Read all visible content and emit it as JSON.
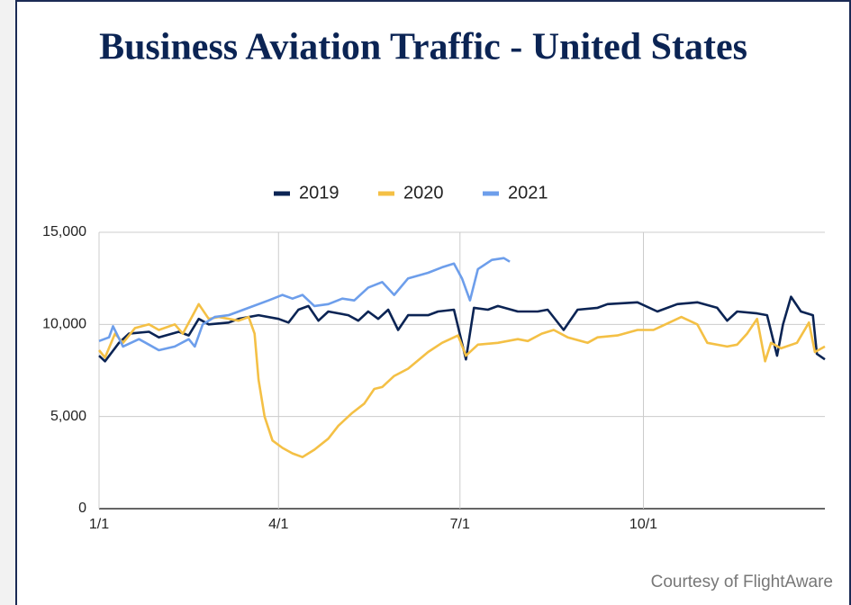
{
  "chart_data": {
    "type": "line",
    "title": "Business Aviation Traffic - United States",
    "footer": "Courtesy of FlightAware",
    "xlim": [
      0,
      364
    ],
    "xticks": [
      {
        "value": 0,
        "label": "1/1"
      },
      {
        "value": 90,
        "label": "4/1"
      },
      {
        "value": 181,
        "label": "7/1"
      },
      {
        "value": 273,
        "label": "10/1"
      }
    ],
    "ylim": [
      0,
      15000
    ],
    "yticks": [
      0,
      {
        "value": 5000,
        "label": "5,000"
      },
      {
        "value": 10000,
        "label": "10,000"
      },
      {
        "value": 15000,
        "label": "15,000"
      }
    ],
    "grid": true,
    "legend": "top",
    "series": [
      {
        "name": "2019",
        "color": "#0b2454",
        "x": [
          0,
          3,
          10,
          15,
          25,
          30,
          40,
          45,
          50,
          55,
          65,
          70,
          80,
          90,
          95,
          100,
          105,
          110,
          115,
          125,
          130,
          135,
          140,
          145,
          150,
          155,
          165,
          170,
          178,
          184,
          188,
          195,
          200,
          210,
          220,
          225,
          233,
          240,
          250,
          255,
          270,
          280,
          290,
          300,
          310,
          315,
          320,
          330,
          335,
          340,
          343,
          347,
          352,
          358,
          360,
          364
        ],
        "values": [
          8300,
          8000,
          9000,
          9500,
          9600,
          9300,
          9600,
          9400,
          10300,
          10000,
          10100,
          10300,
          10500,
          10300,
          10100,
          10800,
          11000,
          10200,
          10700,
          10500,
          10200,
          10700,
          10300,
          10800,
          9700,
          10500,
          10500,
          10700,
          10800,
          8100,
          10900,
          10800,
          11000,
          10700,
          10700,
          10800,
          9700,
          10800,
          10900,
          11100,
          11200,
          10700,
          11100,
          11200,
          10900,
          10200,
          10700,
          10600,
          10500,
          8300,
          10000,
          11500,
          10700,
          10500,
          8400,
          8100
        ]
      },
      {
        "name": "2020",
        "color": "#f4c045",
        "x": [
          0,
          3,
          8,
          12,
          18,
          25,
          30,
          38,
          42,
          47,
          50,
          55,
          60,
          70,
          75,
          78,
          80,
          83,
          87,
          92,
          97,
          102,
          108,
          115,
          120,
          127,
          133,
          138,
          142,
          148,
          155,
          165,
          172,
          180,
          184,
          190,
          200,
          210,
          215,
          222,
          228,
          235,
          245,
          250,
          260,
          270,
          278,
          282,
          292,
          300,
          305,
          315,
          320,
          325,
          330,
          334,
          337,
          342,
          350,
          356,
          359,
          364
        ],
        "values": [
          8600,
          8200,
          9500,
          9000,
          9800,
          10000,
          9700,
          10000,
          9500,
          10500,
          11100,
          10300,
          10400,
          10200,
          10400,
          9500,
          7000,
          5000,
          3700,
          3300,
          3000,
          2800,
          3200,
          3800,
          4500,
          5200,
          5700,
          6500,
          6600,
          7200,
          7600,
          8500,
          9000,
          9400,
          8300,
          8900,
          9000,
          9200,
          9100,
          9500,
          9700,
          9300,
          9000,
          9300,
          9400,
          9700,
          9700,
          9900,
          10400,
          10000,
          9000,
          8800,
          8900,
          9500,
          10300,
          8000,
          9000,
          8700,
          9000,
          10100,
          8500,
          8800
        ]
      },
      {
        "name": "2021",
        "color": "#6d9eeb",
        "x": [
          0,
          5,
          7,
          12,
          20,
          25,
          30,
          38,
          45,
          48,
          52,
          58,
          65,
          70,
          75,
          85,
          92,
          97,
          102,
          108,
          115,
          122,
          128,
          135,
          142,
          148,
          155,
          165,
          172,
          178,
          182,
          186,
          190,
          197,
          203,
          206
        ],
        "values": [
          9100,
          9300,
          9900,
          8800,
          9200,
          8900,
          8600,
          8800,
          9200,
          8800,
          10000,
          10400,
          10500,
          10700,
          10900,
          11300,
          11600,
          11400,
          11600,
          11000,
          11100,
          11400,
          11300,
          12000,
          12300,
          11600,
          12500,
          12800,
          13100,
          13300,
          12500,
          11300,
          13000,
          13500,
          13600,
          13400
        ]
      }
    ]
  }
}
